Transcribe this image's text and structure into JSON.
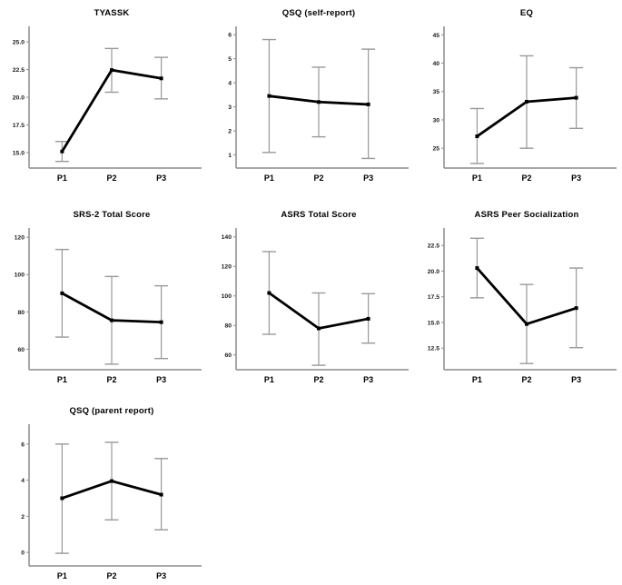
{
  "figure": {
    "background": "#ffffff",
    "x_categories": [
      "P1",
      "P2",
      "P3"
    ]
  },
  "colors": {
    "mean_line": "#000000",
    "marker": "#000000",
    "error_bar": "#999999",
    "axis": "#8c8c8c",
    "tick_text": "#1a1a1a",
    "category_text": "#000000",
    "background": "#ffffff"
  },
  "chart_data": [
    {
      "type": "line",
      "title": "TYASSK",
      "categories": [
        "P1",
        "P2",
        "P3"
      ],
      "series": [
        {
          "name": "mean",
          "values": [
            15.1,
            22.45,
            21.7
          ]
        }
      ],
      "error_low": [
        14.2,
        20.45,
        19.85
      ],
      "error_high": [
        16.0,
        24.4,
        23.6
      ],
      "ytick_values": [
        15.0,
        17.5,
        20.0,
        22.5,
        25.0
      ],
      "ytick_labels": [
        "15.0",
        "17.5",
        "20.0",
        "22.5",
        "25.0"
      ],
      "ylim": [
        13.6,
        26.4
      ],
      "grid": false,
      "legend": "none"
    },
    {
      "type": "line",
      "title": "QSQ (self-report)",
      "categories": [
        "P1",
        "P2",
        "P3"
      ],
      "series": [
        {
          "name": "mean",
          "values": [
            3.45,
            3.2,
            3.1
          ]
        }
      ],
      "error_low": [
        1.1,
        1.75,
        0.85
      ],
      "error_high": [
        5.8,
        4.65,
        5.4
      ],
      "ytick_values": [
        1,
        2,
        3,
        4,
        5,
        6
      ],
      "ytick_labels": [
        "1",
        "2",
        "3",
        "4",
        "5",
        "6"
      ],
      "ylim": [
        0.45,
        6.35
      ],
      "grid": false,
      "legend": "none"
    },
    {
      "type": "line",
      "title": "EQ",
      "categories": [
        "P1",
        "P2",
        "P3"
      ],
      "series": [
        {
          "name": "mean",
          "values": [
            27.1,
            33.2,
            33.9
          ]
        }
      ],
      "error_low": [
        22.3,
        25.0,
        28.5
      ],
      "error_high": [
        32.0,
        41.3,
        39.2
      ],
      "ytick_values": [
        25,
        30,
        35,
        40,
        45
      ],
      "ytick_labels": [
        "25",
        "30",
        "35",
        "40",
        "45"
      ],
      "ylim": [
        21.5,
        46.5
      ],
      "grid": false,
      "legend": "none"
    },
    {
      "type": "line",
      "title": "SRS-2 Total Score",
      "categories": [
        "P1",
        "P2",
        "P3"
      ],
      "series": [
        {
          "name": "mean",
          "values": [
            90,
            75.5,
            74.5
          ]
        }
      ],
      "error_low": [
        66.5,
        52,
        55
      ],
      "error_high": [
        113.5,
        99,
        94
      ],
      "ytick_values": [
        60,
        80,
        100,
        120
      ],
      "ytick_labels": [
        "60",
        "80",
        "100",
        "120"
      ],
      "ylim": [
        49,
        125
      ],
      "grid": false,
      "legend": "none"
    },
    {
      "type": "line",
      "title": "ASRS Total Score",
      "categories": [
        "P1",
        "P2",
        "P3"
      ],
      "series": [
        {
          "name": "mean",
          "values": [
            102,
            78,
            84.5
          ]
        }
      ],
      "error_low": [
        74,
        53,
        68
      ],
      "error_high": [
        130,
        102,
        101.5
      ],
      "ytick_values": [
        60,
        80,
        100,
        120,
        140
      ],
      "ytick_labels": [
        "60",
        "80",
        "100",
        "120",
        "140"
      ],
      "ylim": [
        50,
        146
      ],
      "grid": false,
      "legend": "none"
    },
    {
      "type": "line",
      "title": "ASRS Peer Socialization",
      "categories": [
        "P1",
        "P2",
        "P3"
      ],
      "series": [
        {
          "name": "mean",
          "values": [
            20.3,
            14.85,
            16.4
          ]
        }
      ],
      "error_low": [
        17.4,
        11.0,
        12.55
      ],
      "error_high": [
        23.2,
        18.7,
        20.3
      ],
      "ytick_values": [
        12.5,
        15.0,
        17.5,
        20.0,
        22.5
      ],
      "ytick_labels": [
        "12.5",
        "15.0",
        "17.5",
        "20.0",
        "22.5"
      ],
      "ylim": [
        10.4,
        24.2
      ],
      "grid": false,
      "legend": "none"
    },
    {
      "type": "line",
      "title": "QSQ (parent report)",
      "categories": [
        "P1",
        "P2",
        "P3"
      ],
      "series": [
        {
          "name": "mean",
          "values": [
            3.0,
            3.95,
            3.2
          ]
        }
      ],
      "error_low": [
        -0.05,
        1.8,
        1.25
      ],
      "error_high": [
        6.0,
        6.1,
        5.2
      ],
      "ytick_values": [
        0,
        2,
        4,
        6
      ],
      "ytick_labels": [
        "0",
        "2",
        "4",
        "6"
      ],
      "ylim": [
        -0.75,
        7.1
      ],
      "grid": false,
      "legend": "none"
    }
  ]
}
